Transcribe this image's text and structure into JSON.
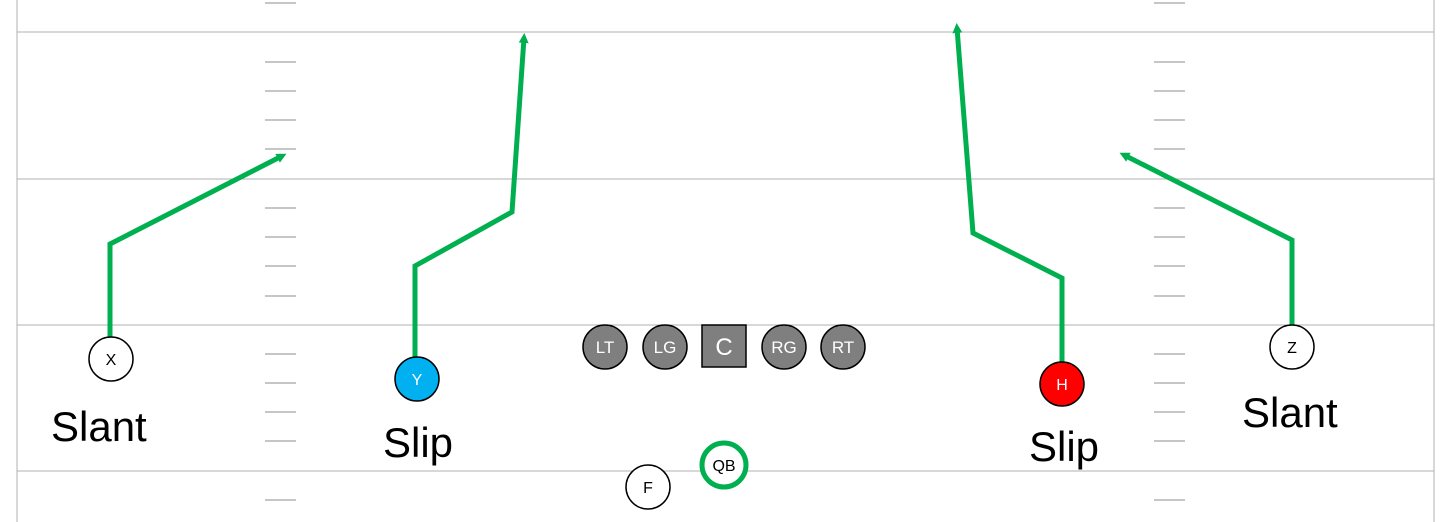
{
  "players": {
    "x": {
      "label": "X",
      "fill": "#ffffff"
    },
    "y": {
      "label": "Y",
      "fill": "#00b0f0"
    },
    "h": {
      "label": "H",
      "fill": "#ff0000"
    },
    "z": {
      "label": "Z",
      "fill": "#ffffff"
    },
    "f": {
      "label": "F",
      "fill": "#ffffff"
    },
    "qb": {
      "label": "QB",
      "fill": "#ffffff",
      "ring_color": "#00b050"
    }
  },
  "line": {
    "lt": "LT",
    "lg": "LG",
    "c": "C",
    "rg": "RG",
    "rt": "RT",
    "color": "#7f7f7f"
  },
  "routes": {
    "x_route": "Slant",
    "y_route": "Slip",
    "h_route": "Slip",
    "z_route": "Slant",
    "color": "#00b050"
  },
  "field": {
    "line_color": "#b0b0b0",
    "hash_color": "#8c8c8c"
  }
}
